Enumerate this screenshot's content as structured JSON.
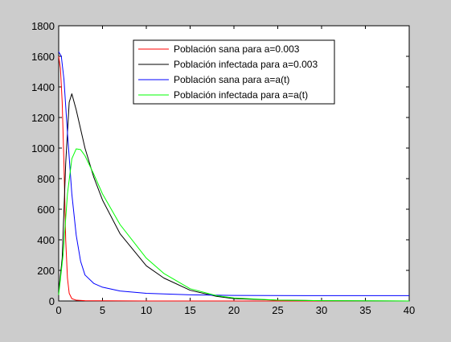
{
  "chart_data": {
    "type": "line",
    "title": "",
    "xlabel": "",
    "ylabel": "",
    "xlim": [
      0,
      40
    ],
    "ylim": [
      0,
      1800
    ],
    "xticks": [
      0,
      5,
      10,
      15,
      20,
      25,
      30,
      35,
      40
    ],
    "yticks": [
      0,
      200,
      400,
      600,
      800,
      1000,
      1200,
      1400,
      1600,
      1800
    ],
    "grid": false,
    "legend_position": "top-center",
    "series": [
      {
        "name": "Población sana para a=0.003",
        "color": "#ff0000",
        "x": [
          0,
          0.2,
          0.4,
          0.6,
          0.8,
          1.0,
          1.2,
          1.5,
          2.0,
          3.0,
          5.0,
          10.0,
          20.0,
          40.0
        ],
        "y": [
          1600,
          1520,
          1300,
          900,
          400,
          150,
          50,
          15,
          5,
          2,
          1,
          0,
          0,
          0
        ]
      },
      {
        "name": "Población infectada para a=0.003",
        "color": "#000000",
        "x": [
          0,
          0.4,
          0.8,
          1.2,
          1.5,
          2.0,
          3.0,
          4.0,
          5.0,
          7.0,
          10.0,
          12.0,
          15.0,
          18.0,
          20.0,
          25.0,
          30.0,
          40.0
        ],
        "y": [
          60,
          280,
          900,
          1300,
          1355,
          1250,
          1000,
          810,
          660,
          440,
          230,
          150,
          70,
          30,
          15,
          5,
          2,
          0
        ]
      },
      {
        "name": "Población sana para a=a(t)",
        "color": "#0000ff",
        "x": [
          0,
          0.3,
          0.6,
          1.0,
          1.5,
          2.0,
          2.5,
          3.0,
          4.0,
          5.0,
          7.0,
          10.0,
          15.0,
          20.0,
          30.0,
          40.0
        ],
        "y": [
          1630,
          1600,
          1450,
          1100,
          700,
          430,
          260,
          170,
          115,
          90,
          65,
          50,
          40,
          36,
          35,
          35
        ]
      },
      {
        "name": "Población infectada para a=a(t)",
        "color": "#00ff00",
        "x": [
          0,
          0.5,
          1.0,
          1.5,
          2.0,
          2.5,
          3.0,
          4.0,
          5.0,
          7.0,
          10.0,
          12.0,
          15.0,
          18.0,
          20.0,
          25.0,
          30.0,
          40.0
        ],
        "y": [
          40,
          300,
          700,
          930,
          995,
          990,
          950,
          830,
          700,
          500,
          280,
          180,
          80,
          35,
          20,
          5,
          2,
          0
        ]
      }
    ]
  }
}
